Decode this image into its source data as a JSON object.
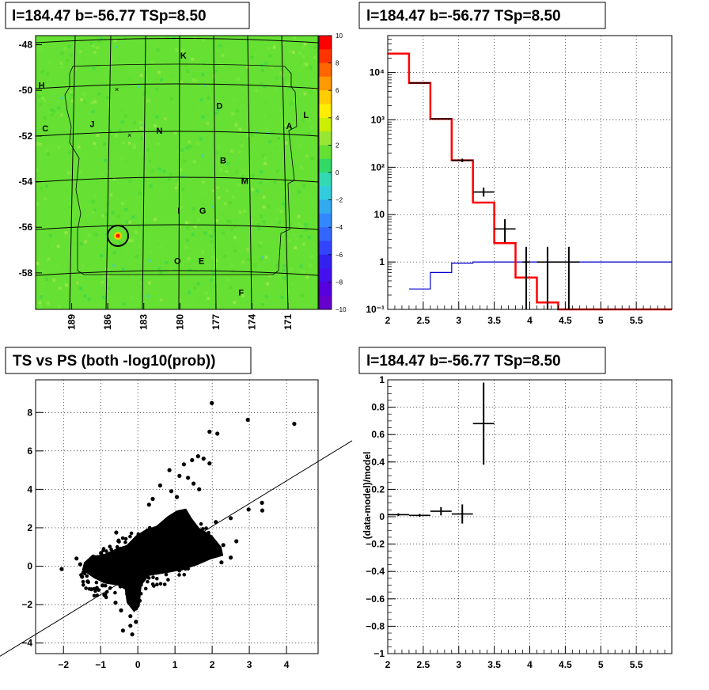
{
  "colors": {
    "background": "#ffffff",
    "model_line": "#ff0000",
    "background_line": "#0000cc",
    "data": "#000000"
  },
  "chart_data": [
    {
      "type": "heatmap",
      "title": "l=184.47 b=-56.77 TSp=8.50",
      "x_ticks": [
        "189",
        "186",
        "183",
        "180",
        "177",
        "174",
        "171"
      ],
      "y_ticks": [
        "-48",
        "-50",
        "-52",
        "-54",
        "-56",
        "-58"
      ],
      "xlim": [
        192,
        168.5
      ],
      "ylim": [
        -59.6,
        -47.6
      ],
      "colorbar": {
        "ticks": [
          "10",
          "8",
          "6",
          "4",
          "2",
          "0",
          "−2",
          "−4",
          "−6",
          "−8",
          "−10"
        ],
        "range": [
          -10,
          10
        ]
      },
      "source": {
        "l": 184.47,
        "b": -56.77
      },
      "labels": [
        {
          "text": "K",
          "l": 179.7,
          "b": -48.6
        },
        {
          "text": "H",
          "l": 191.5,
          "b": -49.9
        },
        {
          "text": "D",
          "l": 176.7,
          "b": -50.8
        },
        {
          "text": "L",
          "l": 169.5,
          "b": -51.2
        },
        {
          "text": "J",
          "l": 187.3,
          "b": -51.6
        },
        {
          "text": "C",
          "l": 191.2,
          "b": -51.8
        },
        {
          "text": "N",
          "l": 181.7,
          "b": -51.9
        },
        {
          "text": "A",
          "l": 170.9,
          "b": -51.7
        },
        {
          "text": "B",
          "l": 176.4,
          "b": -53.2
        },
        {
          "text": "M",
          "l": 174.6,
          "b": -54.1
        },
        {
          "text": "I",
          "l": 180.1,
          "b": -55.4
        },
        {
          "text": "G",
          "l": 178.1,
          "b": -55.4
        },
        {
          "text": "O",
          "l": 180.2,
          "b": -57.6
        },
        {
          "text": "E",
          "l": 178.2,
          "b": -57.6
        },
        {
          "text": "F",
          "l": 174.9,
          "b": -59.0
        }
      ]
    },
    {
      "type": "line",
      "title": "l=184.47 b=-56.77 TSp=8.50",
      "x_ticks": [
        "2",
        "2.5",
        "3",
        "3.5",
        "4",
        "4.5",
        "5",
        "5.5"
      ],
      "y_ticks": [
        "10⁻¹",
        "1",
        "10",
        "10²",
        "10³",
        "10⁴"
      ],
      "xlim": [
        2,
        6
      ],
      "ylim": [
        0.1,
        60000
      ],
      "yscale": "log",
      "grid": true,
      "series": [
        {
          "style": "step",
          "color": "#ff0000",
          "edges": [
            2.0,
            2.3,
            2.6,
            2.9,
            3.2,
            3.5,
            3.8,
            4.1,
            4.4,
            6.0
          ],
          "values": [
            25000,
            6000,
            1050,
            140,
            18,
            2.5,
            0.47,
            0.14,
            0.1
          ]
        },
        {
          "style": "step",
          "color": "#0000cc",
          "edges": [
            2.3,
            2.6,
            2.9,
            3.2,
            3.5,
            6.0
          ],
          "values": [
            0.27,
            0.6,
            0.95,
            1.0,
            1.0
          ]
        },
        {
          "style": "errorbars",
          "color": "#000000",
          "points": [
            {
              "x": 2.45,
              "y": 6000,
              "xerr": 0.15,
              "ylo": 6000,
              "yhi": 6000
            },
            {
              "x": 2.75,
              "y": 1050,
              "xerr": 0.15,
              "ylo": 1050,
              "yhi": 1050
            },
            {
              "x": 3.05,
              "y": 140,
              "xerr": 0.15,
              "ylo": 128,
              "yhi": 152
            },
            {
              "x": 3.35,
              "y": 30,
              "xerr": 0.15,
              "ylo": 24,
              "yhi": 37
            },
            {
              "x": 3.65,
              "y": 5,
              "xerr": 0.15,
              "ylo": 2.6,
              "yhi": 8
            },
            {
              "x": 3.95,
              "y": 1,
              "xerr": 0.05,
              "ylo": 0.1,
              "yhi": 2.1
            },
            {
              "x": 4.25,
              "y": 1,
              "xerr": 0.15,
              "ylo": 0.1,
              "yhi": 2.1
            },
            {
              "x": 4.55,
              "y": 1,
              "xerr": 0.15,
              "ylo": 0.1,
              "yhi": 2.1
            }
          ]
        }
      ]
    },
    {
      "type": "scatter",
      "title": "TS vs PS (both -log10(prob))",
      "x_ticks": [
        "−2",
        "−1",
        "0",
        "1",
        "2",
        "3",
        "4"
      ],
      "y_ticks": [
        "−4",
        "−2",
        "0",
        "2",
        "4",
        "6",
        "8"
      ],
      "xlim": [
        -2.75,
        4.85
      ],
      "ylim": [
        -4.55,
        9.7
      ],
      "grid": true,
      "trend_line": {
        "x": [
          -2.75,
          4.85
        ],
        "y": [
          -3.55,
          5.45
        ]
      },
      "points": [
        [
          1.99,
          8.49
        ],
        [
          2.96,
          7.62
        ],
        [
          4.21,
          7.41
        ],
        [
          1.93,
          7.0
        ],
        [
          2.14,
          6.9
        ],
        [
          1.62,
          5.72
        ],
        [
          1.46,
          5.52
        ],
        [
          1.77,
          5.6
        ],
        [
          1.24,
          5.3
        ],
        [
          1.93,
          5.35
        ],
        [
          0.85,
          5.0
        ],
        [
          1.12,
          4.7
        ],
        [
          1.35,
          4.6
        ],
        [
          1.5,
          4.3
        ],
        [
          0.6,
          4.2
        ],
        [
          1.65,
          4.0
        ],
        [
          0.9,
          3.9
        ],
        [
          0.4,
          3.5
        ],
        [
          1.05,
          3.6
        ],
        [
          0.3,
          3.2
        ],
        [
          3.34,
          3.3
        ],
        [
          2.98,
          2.95
        ],
        [
          3.35,
          2.9
        ],
        [
          2.5,
          2.5
        ],
        [
          2.1,
          2.3
        ],
        [
          2.65,
          1.3
        ],
        [
          2.3,
          1.1
        ],
        [
          2.5,
          0.45
        ],
        [
          2.25,
          0.2
        ],
        [
          2.0,
          0.7
        ],
        [
          -0.58,
          1.75
        ],
        [
          -0.99,
          0.68
        ],
        [
          -1.65,
          0.4
        ],
        [
          -2.05,
          -0.15
        ],
        [
          -1.55,
          0.1
        ],
        [
          -1.2,
          0.5
        ],
        [
          -1.5,
          -0.55
        ],
        [
          -1.25,
          -1.2
        ],
        [
          -1.35,
          -0.8
        ],
        [
          -0.95,
          -1.0
        ],
        [
          -0.9,
          -1.5
        ],
        [
          -0.6,
          -1.9
        ],
        [
          -0.45,
          -2.3
        ],
        [
          -0.2,
          -2.6
        ],
        [
          -0.05,
          -2.9
        ],
        [
          -0.4,
          -3.35
        ],
        [
          -0.2,
          -3.1
        ],
        [
          -0.15,
          -3.55
        ],
        [
          -0.05,
          -2.2
        ],
        [
          0.05,
          -1.8
        ]
      ]
    },
    {
      "type": "scatter",
      "title": "l=184.47 b=-56.77 TSp=8.50",
      "ylabel": "(data-model)/model",
      "x_ticks": [
        "2",
        "2.5",
        "3",
        "3.5",
        "4",
        "4.5",
        "5",
        "5.5"
      ],
      "y_ticks": [
        "−1",
        "−0.8",
        "−0.6",
        "−0.4",
        "−0.2",
        "0",
        "0.2",
        "0.4",
        "0.6",
        "0.8",
        "1"
      ],
      "xlim": [
        2,
        6
      ],
      "ylim": [
        -1,
        1
      ],
      "grid": true,
      "points": [
        {
          "x": 2.15,
          "y": 0.015,
          "xerr": 0.15,
          "yerr": 0.01
        },
        {
          "x": 2.45,
          "y": 0.01,
          "xerr": 0.15,
          "yerr": 0.01
        },
        {
          "x": 2.75,
          "y": 0.04,
          "xerr": 0.15,
          "yerr": 0.03
        },
        {
          "x": 3.05,
          "y": 0.02,
          "xerr": 0.15,
          "yerr": 0.07
        },
        {
          "x": 3.35,
          "y": 0.68,
          "xerr": 0.15,
          "yerr": 0.3
        }
      ]
    }
  ]
}
